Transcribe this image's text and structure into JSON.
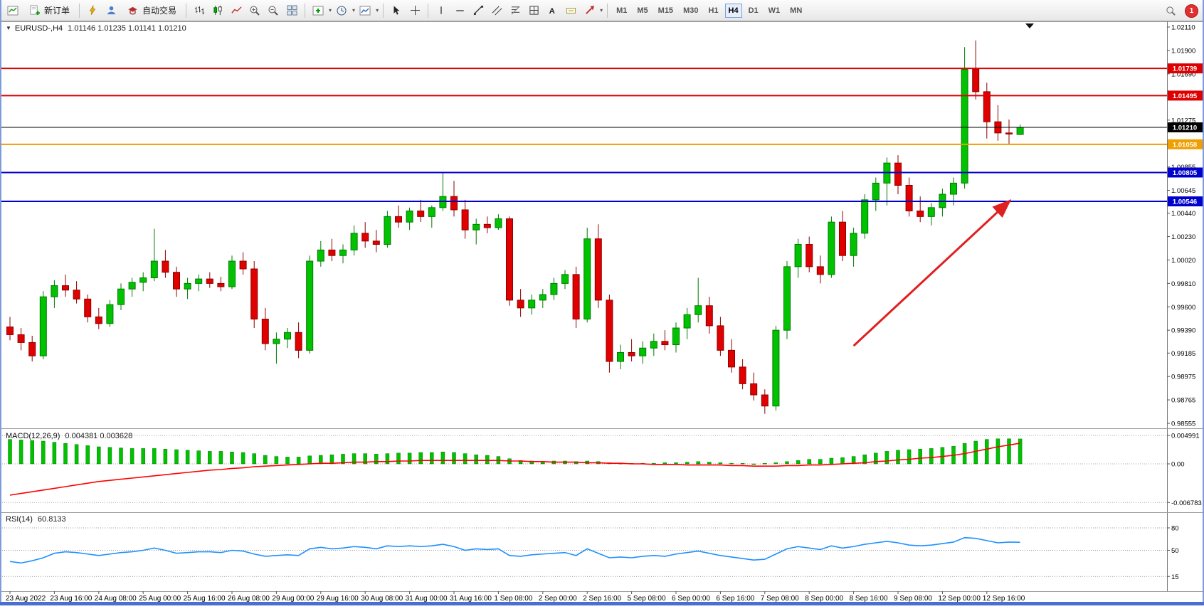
{
  "toolbar": {
    "new_order": "新订单",
    "auto_trading": "自动交易",
    "timeframes": [
      "M1",
      "M5",
      "M15",
      "M30",
      "H1",
      "H4",
      "D1",
      "W1",
      "MN"
    ],
    "active_timeframe": "H4",
    "notification_badge": "1"
  },
  "chart": {
    "symbol_period": "EURUSD-,H4",
    "ohlc_text": "1.01146 1.01235 1.01141 1.01210"
  },
  "indicators": {
    "macd_label": "MACD(12,26,9)",
    "macd_values": "0.004381 0.003628",
    "rsi_label": "RSI(14)",
    "rsi_value": "60.8133"
  },
  "icons": [
    "chart-window-icon",
    "new-order-icon",
    "lightning-icon",
    "profile-icon",
    "auto-trading-icon",
    "bar-chart-icon",
    "candlestick-icon",
    "line-chart-icon",
    "zoom-in-icon",
    "zoom-out-icon",
    "tile-windows-icon",
    "indicators-icon",
    "periods-icon",
    "templates-icon",
    "cursor-icon",
    "crosshair-icon",
    "vertical-line-icon",
    "horizontal-line-icon",
    "trendline-icon",
    "channel-icon",
    "fibonacci-icon",
    "shapes-icon",
    "text-icon",
    "label-icon",
    "arrow-tools-icon",
    "search-icon",
    "notification-badge",
    "chart-shift-marker",
    "one-click-trading-toggle"
  ],
  "chart_data": {
    "type": "candlestick",
    "symbol": "EURUSD-",
    "period": "H4",
    "ohlc_display": {
      "open": "1.01146",
      "high": "1.01235",
      "low": "1.01141",
      "close": "1.01210"
    },
    "price_min": 0.98555,
    "price_max": 1.0211,
    "price_axis_labels": [
      "1.02110",
      "1.01900",
      "1.01690",
      "1.01275",
      "1.00855",
      "1.00645",
      "1.00440",
      "1.00230",
      "1.00020",
      "0.99810",
      "0.99600",
      "0.99390",
      "0.99185",
      "0.98975",
      "0.98765",
      "0.98555"
    ],
    "time_labels": [
      "23 Aug 2022",
      "23 Aug 16:00",
      "24 Aug 08:00",
      "25 Aug 00:00",
      "25 Aug 16:00",
      "26 Aug 08:00",
      "29 Aug 00:00",
      "29 Aug 16:00",
      "30 Aug 08:00",
      "31 Aug 00:00",
      "31 Aug 16:00",
      "1 Sep 08:00",
      "2 Sep 00:00",
      "2 Sep 16:00",
      "5 Sep 08:00",
      "6 Sep 00:00",
      "6 Sep 16:00",
      "7 Sep 08:00",
      "8 Sep 00:00",
      "8 Sep 16:00",
      "9 Sep 08:00",
      "12 Sep 00:00",
      "12 Sep 16:00"
    ],
    "candles_per_label": 4,
    "levels": [
      {
        "price": 1.01739,
        "label": "1.01739",
        "color": "#dd0000",
        "width": 2
      },
      {
        "price": 1.01495,
        "label": "1.01495",
        "color": "#dd0000",
        "width": 2
      },
      {
        "price": 1.0121,
        "label": "1.01210",
        "color": "#000000",
        "width": 1,
        "current": true
      },
      {
        "price": 1.01058,
        "label": "1.01058",
        "color": "#ef9f00",
        "width": 2
      },
      {
        "price": 1.00805,
        "label": "1.00805",
        "color": "#0000cc",
        "width": 2
      },
      {
        "price": 1.00546,
        "label": "1.00546",
        "color": "#0000cc",
        "width": 2
      }
    ],
    "trend_arrow": {
      "from_index": 76,
      "from_price": 0.9925,
      "to_index": 90,
      "to_price": 1.00546,
      "color": "#e02020"
    },
    "candles": [
      [
        0.9942,
        0.9951,
        0.993,
        0.9935
      ],
      [
        0.9935,
        0.9941,
        0.9921,
        0.9928
      ],
      [
        0.9928,
        0.9934,
        0.9911,
        0.9916
      ],
      [
        0.9916,
        0.9974,
        0.9913,
        0.9969
      ],
      [
        0.9969,
        0.9984,
        0.9959,
        0.9979
      ],
      [
        0.9979,
        0.9989,
        0.9969,
        0.9975
      ],
      [
        0.9975,
        0.9983,
        0.9963,
        0.9967
      ],
      [
        0.9967,
        0.9971,
        0.9946,
        0.9951
      ],
      [
        0.9951,
        0.9959,
        0.994,
        0.9945
      ],
      [
        0.9945,
        0.9966,
        0.9942,
        0.9962
      ],
      [
        0.9962,
        0.9981,
        0.9957,
        0.9976
      ],
      [
        0.9976,
        0.9986,
        0.9969,
        0.9982
      ],
      [
        0.9982,
        0.9991,
        0.9974,
        0.9986
      ],
      [
        0.9986,
        1.003,
        0.9983,
        1.0001
      ],
      [
        1.0001,
        1.0011,
        0.9986,
        0.9991
      ],
      [
        0.9991,
        0.9996,
        0.9969,
        0.9976
      ],
      [
        0.9976,
        0.9986,
        0.9967,
        0.9981
      ],
      [
        0.9981,
        0.9989,
        0.9974,
        0.9985
      ],
      [
        0.9985,
        0.9991,
        0.9977,
        0.9981
      ],
      [
        0.9981,
        0.9987,
        0.9974,
        0.9978
      ],
      [
        0.9978,
        1.0006,
        0.9976,
        1.0001
      ],
      [
        1.0001,
        1.0009,
        0.9989,
        0.9994
      ],
      [
        0.9994,
        1.0001,
        0.9941,
        0.9949
      ],
      [
        0.9949,
        0.9959,
        0.9921,
        0.9927
      ],
      [
        0.9927,
        0.9937,
        0.9909,
        0.9931
      ],
      [
        0.9931,
        0.9941,
        0.9923,
        0.9937
      ],
      [
        0.9937,
        0.9946,
        0.9914,
        0.9921
      ],
      [
        0.9921,
        1.0006,
        0.9918,
        1.0001
      ],
      [
        1.0001,
        1.0019,
        0.9996,
        1.0011
      ],
      [
        1.0011,
        1.0021,
        1.0001,
        1.0006
      ],
      [
        1.0006,
        1.0016,
        0.9999,
        1.0011
      ],
      [
        1.0011,
        1.0033,
        1.0006,
        1.0026
      ],
      [
        1.0026,
        1.0036,
        1.0013,
        1.0019
      ],
      [
        1.0019,
        1.0029,
        1.0009,
        1.0016
      ],
      [
        1.0016,
        1.0046,
        1.0013,
        1.0041
      ],
      [
        1.0041,
        1.0051,
        1.0031,
        1.0036
      ],
      [
        1.0036,
        1.0049,
        1.0029,
        1.0046
      ],
      [
        1.0046,
        1.0056,
        1.0036,
        1.0041
      ],
      [
        1.0041,
        1.0051,
        1.0031,
        1.0049
      ],
      [
        1.0049,
        1.0081,
        1.0046,
        1.0059
      ],
      [
        1.0059,
        1.0073,
        1.0041,
        1.0047
      ],
      [
        1.0047,
        1.0056,
        1.0021,
        1.0029
      ],
      [
        1.0029,
        1.0039,
        1.0016,
        1.0034
      ],
      [
        1.0034,
        1.0041,
        1.0026,
        1.0031
      ],
      [
        1.0031,
        1.0043,
        1.0029,
        1.0039
      ],
      [
        1.0039,
        1.0041,
        0.9961,
        0.9966
      ],
      [
        0.9966,
        0.9976,
        0.9951,
        0.9959
      ],
      [
        0.9959,
        0.9971,
        0.9953,
        0.9966
      ],
      [
        0.9966,
        0.9976,
        0.9959,
        0.9971
      ],
      [
        0.9971,
        0.9986,
        0.9966,
        0.9981
      ],
      [
        0.9981,
        0.9993,
        0.9976,
        0.9989
      ],
      [
        0.9989,
        0.9996,
        0.9941,
        0.9949
      ],
      [
        0.9949,
        1.0031,
        0.9946,
        1.0021
      ],
      [
        1.0021,
        1.0034,
        0.9959,
        0.9966
      ],
      [
        0.9966,
        0.9971,
        0.9901,
        0.9911
      ],
      [
        0.9911,
        0.9926,
        0.9904,
        0.9919
      ],
      [
        0.9919,
        0.9931,
        0.9911,
        0.9916
      ],
      [
        0.9916,
        0.9929,
        0.9909,
        0.9923
      ],
      [
        0.9923,
        0.9936,
        0.9916,
        0.9929
      ],
      [
        0.9929,
        0.9939,
        0.9921,
        0.9926
      ],
      [
        0.9926,
        0.9946,
        0.9919,
        0.9941
      ],
      [
        0.9941,
        0.9959,
        0.9931,
        0.9953
      ],
      [
        0.9953,
        0.9986,
        0.9946,
        0.9961
      ],
      [
        0.9961,
        0.9969,
        0.9936,
        0.9943
      ],
      [
        0.9943,
        0.9951,
        0.9916,
        0.9921
      ],
      [
        0.9921,
        0.9931,
        0.9901,
        0.9906
      ],
      [
        0.9906,
        0.9913,
        0.9886,
        0.9891
      ],
      [
        0.9891,
        0.9901,
        0.9876,
        0.9881
      ],
      [
        0.9881,
        0.9886,
        0.9864,
        0.9871
      ],
      [
        0.9871,
        0.9943,
        0.9867,
        0.9939
      ],
      [
        0.9939,
        1.0001,
        0.9931,
        0.9996
      ],
      [
        0.9996,
        1.0021,
        0.9986,
        1.0016
      ],
      [
        1.0016,
        1.0023,
        0.9991,
        0.9996
      ],
      [
        0.9996,
        1.0006,
        0.9981,
        0.9989
      ],
      [
        0.9989,
        1.0041,
        0.9986,
        1.0036
      ],
      [
        1.0036,
        1.0046,
        1.0001,
        1.0006
      ],
      [
        1.0006,
        1.0031,
        0.9996,
        1.0026
      ],
      [
        1.0026,
        1.0061,
        1.0021,
        1.0056
      ],
      [
        1.0056,
        1.0076,
        1.0046,
        1.0071
      ],
      [
        1.0071,
        1.0094,
        1.0051,
        1.0089
      ],
      [
        1.0089,
        1.0096,
        1.0061,
        1.0069
      ],
      [
        1.0069,
        1.0076,
        1.0041,
        1.0046
      ],
      [
        1.0046,
        1.0059,
        1.0036,
        1.0041
      ],
      [
        1.0041,
        1.0053,
        1.0033,
        1.0049
      ],
      [
        1.0049,
        1.0066,
        1.0041,
        1.0061
      ],
      [
        1.0061,
        1.0076,
        1.0051,
        1.0071
      ],
      [
        1.0071,
        1.0193,
        1.0066,
        1.0173
      ],
      [
        1.0173,
        1.0199,
        1.0146,
        1.0153
      ],
      [
        1.0153,
        1.0161,
        1.0111,
        1.0126
      ],
      [
        1.0126,
        1.0141,
        1.0109,
        1.0116
      ],
      [
        1.0116,
        1.0128,
        1.0106,
        1.0115
      ],
      [
        1.01146,
        1.01235,
        1.01141,
        1.0121
      ]
    ],
    "macd": {
      "histogram": [
        0.0043,
        0.0042,
        0.0041,
        0.004,
        0.0038,
        0.0036,
        0.0034,
        0.0032,
        0.003,
        0.0029,
        0.0028,
        0.0027,
        0.0027,
        0.0027,
        0.0026,
        0.0025,
        0.0024,
        0.0023,
        0.0022,
        0.0022,
        0.0021,
        0.002,
        0.0018,
        0.0015,
        0.0013,
        0.0012,
        0.0012,
        0.0014,
        0.0015,
        0.0016,
        0.0017,
        0.0018,
        0.0018,
        0.0017,
        0.0018,
        0.0019,
        0.0019,
        0.002,
        0.002,
        0.0021,
        0.002,
        0.0018,
        0.0016,
        0.0015,
        0.0013,
        0.0009,
        0.0006,
        0.0005,
        0.0004,
        0.0005,
        0.0005,
        0.0004,
        0.0005,
        0.0004,
        0.0002,
        0.0001,
        0.0001,
        0.0001,
        0.0001,
        0.0002,
        0.0002,
        0.0003,
        0.0004,
        0.0003,
        0.0002,
        0.0001,
        0.0001,
        0.0,
        0.0001,
        0.0002,
        0.0004,
        0.0006,
        0.0008,
        0.0008,
        0.001,
        0.0011,
        0.0013,
        0.0016,
        0.0019,
        0.0022,
        0.0024,
        0.0025,
        0.0026,
        0.0027,
        0.0029,
        0.0031,
        0.0036,
        0.004,
        0.0043,
        0.0044,
        0.0044,
        0.004381
      ],
      "signal": [
        -0.0055,
        -0.0052,
        -0.0049,
        -0.0046,
        -0.0043,
        -0.004,
        -0.0037,
        -0.0034,
        -0.0031,
        -0.0029,
        -0.0027,
        -0.0025,
        -0.0023,
        -0.0021,
        -0.0019,
        -0.0017,
        -0.0015,
        -0.0013,
        -0.0011,
        -0.001,
        -0.0008,
        -0.0007,
        -0.0005,
        -0.0004,
        -0.0003,
        -0.0002,
        -0.0001,
        0.0,
        0.0001,
        0.0001,
        0.0002,
        0.0003,
        0.0003,
        0.0004,
        0.0004,
        0.0005,
        0.0005,
        0.0006,
        0.0006,
        0.0006,
        0.0006,
        0.0006,
        0.0006,
        0.0006,
        0.0006,
        0.0005,
        0.0005,
        0.0004,
        0.0004,
        0.0003,
        0.0003,
        0.0003,
        0.0002,
        0.0002,
        0.0001,
        0.0001,
        0.0,
        0.0,
        -0.0001,
        -0.0001,
        -0.0001,
        -0.0002,
        -0.0002,
        -0.0002,
        -0.0002,
        -0.0003,
        -0.0003,
        -0.0004,
        -0.0004,
        -0.0004,
        -0.0003,
        -0.0003,
        -0.0002,
        -0.0002,
        -0.0001,
        0.0,
        0.0001,
        0.0002,
        0.0004,
        0.0005,
        0.0007,
        0.0008,
        0.001,
        0.0011,
        0.0013,
        0.0015,
        0.0018,
        0.0022,
        0.0026,
        0.003,
        0.0033,
        0.003628
      ],
      "axis": [
        {
          "v": 0.004991,
          "t": "0.004991"
        },
        {
          "v": 0,
          "t": "0.00"
        },
        {
          "v": -0.006783,
          "t": "-0.006783"
        }
      ]
    },
    "rsi": {
      "values": [
        35,
        33,
        36,
        40,
        46,
        48,
        47,
        45,
        43,
        45,
        47,
        48,
        50,
        53,
        50,
        46,
        47,
        48,
        48,
        47,
        50,
        49,
        45,
        42,
        43,
        44,
        43,
        52,
        54,
        52,
        53,
        55,
        54,
        52,
        56,
        55,
        56,
        55,
        56,
        58,
        55,
        50,
        52,
        51,
        52,
        43,
        42,
        44,
        45,
        46,
        47,
        43,
        52,
        46,
        40,
        41,
        40,
        42,
        43,
        42,
        45,
        47,
        49,
        46,
        43,
        41,
        39,
        37,
        38,
        45,
        52,
        55,
        53,
        51,
        56,
        53,
        55,
        58,
        60,
        62,
        60,
        57,
        56,
        57,
        59,
        61,
        67,
        66,
        63,
        60,
        61,
        60.8133
      ],
      "levels": [
        {
          "v": 80,
          "t": "80"
        },
        {
          "v": 50,
          "t": "50"
        },
        {
          "v": 15,
          "t": "15"
        }
      ]
    },
    "colors": {
      "bull": "#00c200",
      "bull_border": "#007a00",
      "bear": "#e00000",
      "bear_border": "#8e0000",
      "macd_hist": "#00c200",
      "macd_signal": "#ff0000",
      "rsi_line": "#1e90ff",
      "arrow": "#e02020",
      "axis_text": "#000000",
      "divider": "#9a9a9a"
    }
  }
}
